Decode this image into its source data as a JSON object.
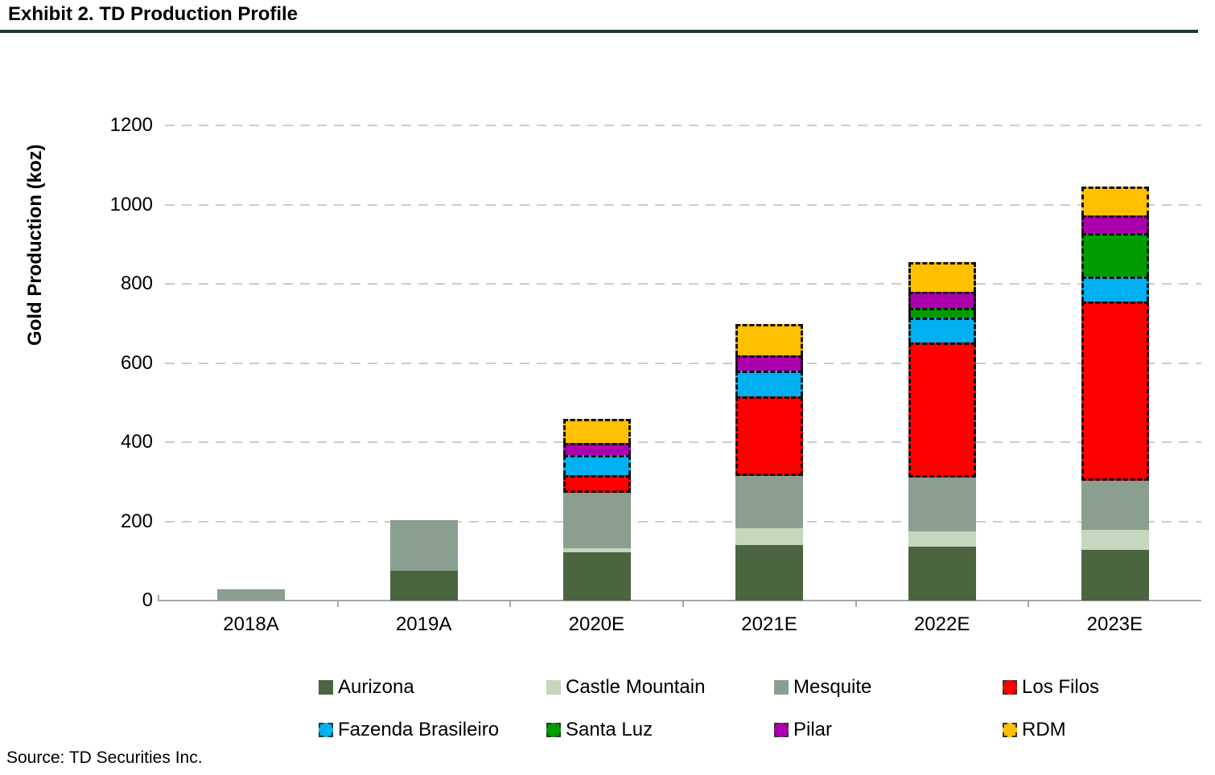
{
  "title": "Exhibit 2. TD Production Profile",
  "source": "Source: TD Securities Inc.",
  "styles": {
    "title_rule_color": "#1d3d2b",
    "axis_color": "#a6a6a6",
    "gridline_color": "#cccccc",
    "estimate_border_color": "#111111"
  },
  "chart_data": {
    "type": "bar",
    "stacked": true,
    "title": "Exhibit 2. TD Production Profile",
    "xlabel": "",
    "ylabel": "Gold Production (koz)",
    "ylim": [
      0,
      1200
    ],
    "yticks": [
      0,
      200,
      400,
      600,
      800,
      1000,
      1200
    ],
    "grid": "horizontal-dashed",
    "legend_position": "bottom",
    "categories": [
      "2018A",
      "2019A",
      "2020E",
      "2021E",
      "2022E",
      "2023E"
    ],
    "estimate_categories": [
      "2020E",
      "2021E",
      "2022E",
      "2023E"
    ],
    "series": [
      {
        "name": "Aurizona",
        "color": "#4a653f",
        "estimate": false,
        "values": [
          0,
          75,
          122,
          140,
          137,
          128
        ]
      },
      {
        "name": "Castle Mountain",
        "color": "#c5d7bd",
        "estimate": false,
        "values": [
          0,
          0,
          10,
          42,
          38,
          50
        ]
      },
      {
        "name": "Mesquite",
        "color": "#8a9f90",
        "estimate": false,
        "values": [
          28,
          128,
          140,
          133,
          136,
          124
        ]
      },
      {
        "name": "Los Filos",
        "color": "#fe0000",
        "estimate": true,
        "values": [
          0,
          0,
          44,
          200,
          340,
          453
        ]
      },
      {
        "name": "Fazenda Brasileiro",
        "color": "#00b0f0",
        "estimate": true,
        "values": [
          0,
          0,
          52,
          65,
          64,
          63
        ]
      },
      {
        "name": "Santa Luz",
        "color": "#009b00",
        "estimate": true,
        "values": [
          0,
          0,
          0,
          0,
          25,
          110
        ]
      },
      {
        "name": "Pilar",
        "color": "#ad00ad",
        "estimate": true,
        "values": [
          0,
          0,
          30,
          40,
          40,
          44
        ]
      },
      {
        "name": "RDM",
        "color": "#ffc000",
        "estimate": true,
        "values": [
          0,
          0,
          60,
          78,
          75,
          73
        ]
      }
    ],
    "totals": [
      28,
      203,
      458,
      698,
      855,
      1045
    ]
  }
}
